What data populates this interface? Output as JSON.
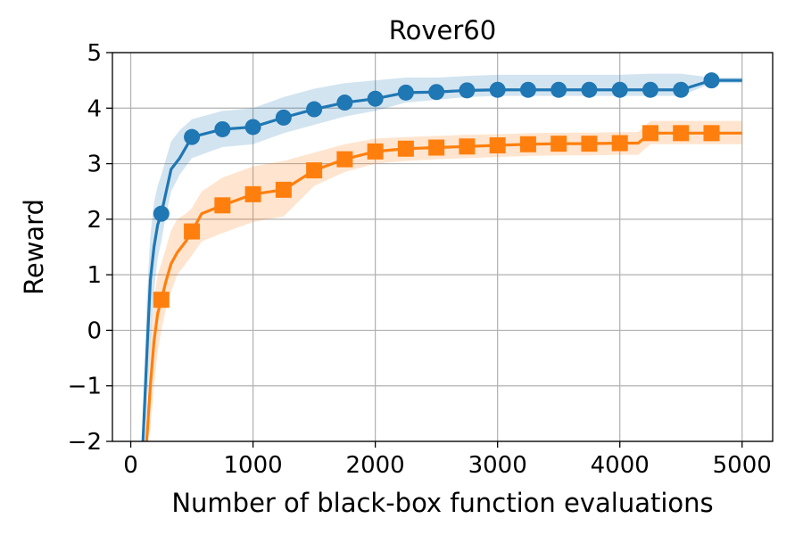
{
  "chart_data": {
    "type": "line",
    "title": "Rover60",
    "xlabel": "Number of black-box function evaluations",
    "ylabel": "Reward",
    "xlim": [
      -150,
      5250
    ],
    "ylim": [
      -2,
      5
    ],
    "xticks": [
      0,
      1000,
      2000,
      3000,
      4000,
      5000
    ],
    "xtick_labels": [
      "0",
      "1000",
      "2000",
      "3000",
      "4000",
      "5000"
    ],
    "yticks": [
      -2,
      -1,
      0,
      1,
      2,
      3,
      4,
      5
    ],
    "ytick_labels": [
      "−2",
      "−1",
      "0",
      "1",
      "2",
      "3",
      "4",
      "5"
    ],
    "grid": true,
    "legend": "none",
    "series": [
      {
        "color": "#1f77b4",
        "marker": "circle",
        "x": [
          100,
          130,
          160,
          190,
          220,
          250,
          290,
          330,
          400,
          500,
          750,
          1000,
          1250,
          1500,
          1750,
          2000,
          2250,
          2500,
          2750,
          3000,
          3250,
          3500,
          3750,
          4000,
          4250,
          4500,
          4750,
          5000
        ],
        "y": [
          -2.0,
          -0.5,
          0.9,
          1.5,
          1.9,
          2.1,
          2.5,
          2.9,
          3.1,
          3.48,
          3.62,
          3.66,
          3.83,
          3.98,
          4.1,
          4.17,
          4.28,
          4.29,
          4.32,
          4.33,
          4.33,
          4.33,
          4.33,
          4.33,
          4.33,
          4.33,
          4.5,
          4.5
        ],
        "lower": [
          -2.0,
          -1.5,
          -0.3,
          0.7,
          1.3,
          1.6,
          2.1,
          2.5,
          2.8,
          3.1,
          3.3,
          3.35,
          3.55,
          3.7,
          3.85,
          3.95,
          4.1,
          4.15,
          4.2,
          4.22,
          4.22,
          4.22,
          4.22,
          4.22,
          4.22,
          4.22,
          4.45,
          4.45
        ],
        "upper": [
          -2.0,
          0.5,
          1.7,
          2.3,
          2.6,
          2.8,
          3.1,
          3.4,
          3.6,
          3.8,
          3.95,
          4.0,
          4.2,
          4.35,
          4.45,
          4.5,
          4.55,
          4.55,
          4.58,
          4.6,
          4.6,
          4.6,
          4.6,
          4.6,
          4.62,
          4.62,
          4.55,
          4.55
        ],
        "marker_x": [
          250,
          500,
          750,
          1000,
          1250,
          1500,
          1750,
          2000,
          2250,
          2500,
          2750,
          3000,
          3250,
          3500,
          3750,
          4000,
          4250,
          4500,
          4750
        ],
        "marker_y": [
          2.1,
          3.48,
          3.62,
          3.66,
          3.83,
          3.98,
          4.1,
          4.17,
          4.28,
          4.29,
          4.32,
          4.33,
          4.33,
          4.33,
          4.33,
          4.33,
          4.33,
          4.33,
          4.5
        ]
      },
      {
        "color": "#ff7f0e",
        "marker": "square",
        "x": [
          130,
          160,
          190,
          220,
          250,
          290,
          330,
          380,
          450,
          500,
          580,
          750,
          1000,
          1250,
          1500,
          1750,
          2000,
          2250,
          2500,
          2750,
          3000,
          3250,
          3500,
          3750,
          4000,
          4150,
          4250,
          4500,
          4750,
          5000
        ],
        "y": [
          -2.0,
          -1.0,
          -0.2,
          0.3,
          0.55,
          0.9,
          1.2,
          1.4,
          1.6,
          1.78,
          2.1,
          2.25,
          2.45,
          2.53,
          2.88,
          3.08,
          3.22,
          3.27,
          3.29,
          3.31,
          3.33,
          3.35,
          3.36,
          3.36,
          3.37,
          3.37,
          3.55,
          3.55,
          3.55,
          3.55
        ],
        "lower": [
          -2.0,
          -1.8,
          -1.0,
          -0.4,
          0.0,
          0.4,
          0.7,
          1.0,
          1.2,
          1.35,
          1.6,
          1.75,
          1.95,
          2.05,
          2.6,
          2.85,
          3.0,
          3.05,
          3.08,
          3.1,
          3.12,
          3.14,
          3.15,
          3.15,
          3.16,
          3.16,
          3.35,
          3.35,
          3.35,
          3.35
        ],
        "upper": [
          -2.0,
          -0.2,
          0.6,
          1.0,
          1.2,
          1.5,
          1.8,
          2.0,
          2.1,
          2.2,
          2.5,
          2.75,
          2.95,
          3.05,
          3.2,
          3.35,
          3.45,
          3.48,
          3.5,
          3.52,
          3.53,
          3.55,
          3.56,
          3.56,
          3.57,
          3.57,
          3.77,
          3.77,
          3.77,
          3.77
        ],
        "marker_x": [
          250,
          500,
          750,
          1000,
          1250,
          1500,
          1750,
          2000,
          2250,
          2500,
          2750,
          3000,
          3250,
          3500,
          3750,
          4000,
          4250,
          4500,
          4750
        ],
        "marker_y": [
          0.55,
          1.78,
          2.25,
          2.45,
          2.53,
          2.88,
          3.08,
          3.22,
          3.27,
          3.29,
          3.31,
          3.33,
          3.35,
          3.36,
          3.36,
          3.37,
          3.55,
          3.55,
          3.55
        ]
      }
    ]
  }
}
